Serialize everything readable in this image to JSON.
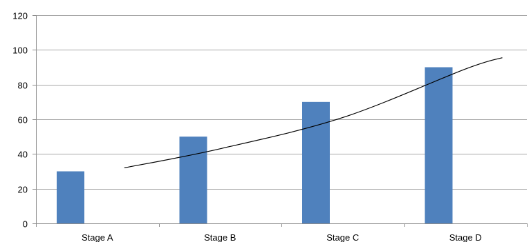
{
  "chart_data": {
    "type": "bar",
    "categories": [
      "Stage A",
      "Stage B",
      "Stage C",
      "Stage D"
    ],
    "series": [
      {
        "values": [
          30,
          50,
          70,
          90
        ],
        "color": "#4f81bd"
      }
    ],
    "trendline": {
      "type": "exponential",
      "color": "#000000",
      "points": [
        [
          0.22,
          32
        ],
        [
          1,
          43
        ],
        [
          2,
          61
        ],
        [
          3,
          89
        ],
        [
          3.3,
          95.5
        ]
      ]
    },
    "ylim": [
      0,
      120
    ],
    "yticks": [
      0,
      20,
      40,
      60,
      80,
      100,
      120
    ],
    "grid": true,
    "legend": "none",
    "title": "",
    "xlabel": "",
    "ylabel": ""
  }
}
